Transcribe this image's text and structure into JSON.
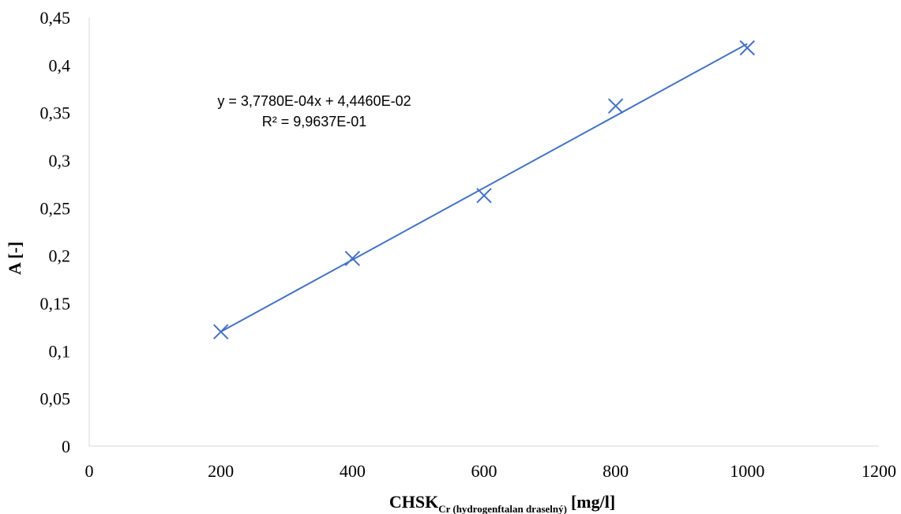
{
  "chart_data": {
    "type": "scatter",
    "title": "",
    "xlabel": {
      "main": "CHSK",
      "sub": "Cr (hydrogenftalan draselný)",
      "unit": "[mg/l]"
    },
    "ylabel": "A [-]",
    "xlim": [
      0,
      1200
    ],
    "ylim": [
      0,
      0.45
    ],
    "x_ticks": [
      0,
      200,
      400,
      600,
      800,
      1000,
      1200
    ],
    "x_tick_labels": [
      "0",
      "200",
      "400",
      "600",
      "800",
      "1000",
      "1200"
    ],
    "y_ticks": [
      0,
      0.05,
      0.1,
      0.15,
      0.2,
      0.25,
      0.3,
      0.35,
      0.4,
      0.45
    ],
    "y_tick_labels": [
      "0",
      "0,05",
      "0,1",
      "0,15",
      "0,2",
      "0,25",
      "0,3",
      "0,35",
      "0,4",
      "0,45"
    ],
    "grid": false,
    "series": [
      {
        "marker": "x",
        "color": "#4472C4",
        "points": [
          {
            "x": 200,
            "y": 0.12
          },
          {
            "x": 400,
            "y": 0.197
          },
          {
            "x": 600,
            "y": 0.263
          },
          {
            "x": 800,
            "y": 0.357
          },
          {
            "x": 1000,
            "y": 0.418
          }
        ]
      }
    ],
    "trendline": {
      "type": "linear",
      "slope": 0.0003778,
      "intercept": 0.04446,
      "x_range": [
        200,
        1000
      ],
      "color": "#4472C4",
      "equation_text": "y = 3,7780E-04x + 4,4460E-02",
      "r2_text": "R² = 9,9637E-01"
    }
  }
}
